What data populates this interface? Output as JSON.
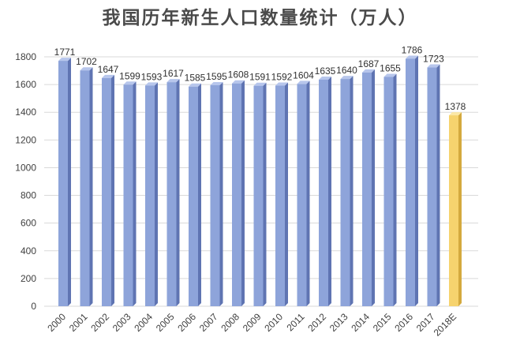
{
  "chart_data": {
    "type": "bar",
    "title": "我国历年新生人口数量统计（万人）",
    "xlabel": "",
    "ylabel": "",
    "ylim": [
      0,
      1800
    ],
    "yticks": [
      0,
      200,
      400,
      600,
      800,
      1000,
      1200,
      1400,
      1600,
      1800
    ],
    "grid": true,
    "legend": "none",
    "categories": [
      "2000",
      "2001",
      "2002",
      "2003",
      "2004",
      "2005",
      "2006",
      "2007",
      "2008",
      "2009",
      "2010",
      "2011",
      "2012",
      "2013",
      "2014",
      "2015",
      "2016",
      "2017",
      "2018E"
    ],
    "values": [
      1771,
      1702,
      1647,
      1599,
      1593,
      1617,
      1585,
      1595,
      1608,
      1591,
      1592,
      1604,
      1635,
      1640,
      1687,
      1655,
      1786,
      1723,
      1378
    ],
    "colors": {
      "bar_front": "#8EA4DA",
      "bar_side": "#5F74B2",
      "bar_top": "#B7C6EC",
      "highlight_front": "#F6D36E",
      "highlight_side": "#D4A93E",
      "highlight_top": "#FBE7A6",
      "gridline": "#D9D9D9"
    },
    "highlight_category": "2018E"
  }
}
